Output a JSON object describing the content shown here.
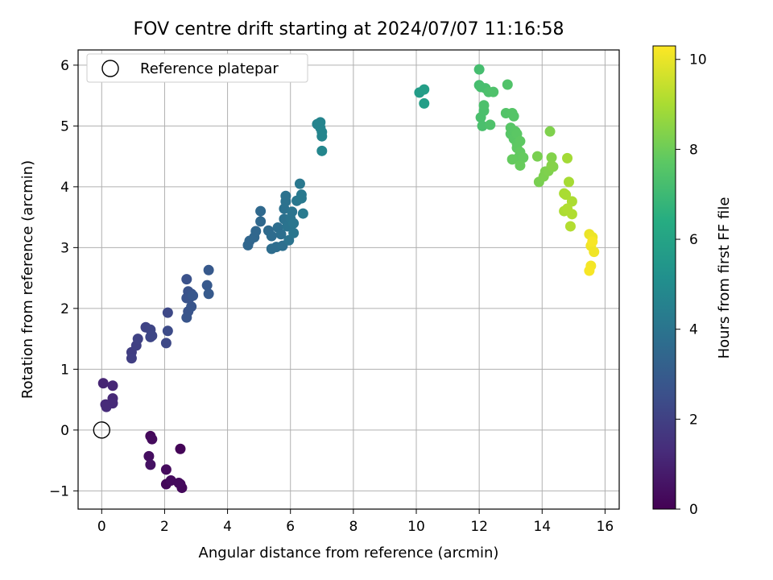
{
  "chart_data": {
    "type": "scatter",
    "title": "FOV centre drift starting at 2024/07/07 11:16:58",
    "xlabel": "Angular distance from reference (arcmin)",
    "ylabel": "Rotation from reference (arcmin)",
    "xlim": [
      -0.75,
      16.45
    ],
    "ylim": [
      -1.3,
      6.25
    ],
    "xticks": [
      0,
      2,
      4,
      6,
      8,
      10,
      12,
      14,
      16
    ],
    "xtick_labels": [
      "0",
      "2",
      "4",
      "6",
      "8",
      "10",
      "12",
      "14",
      "16"
    ],
    "yticks": [
      -1,
      0,
      1,
      2,
      3,
      4,
      5,
      6
    ],
    "ytick_labels": [
      "−1",
      "0",
      "1",
      "2",
      "3",
      "4",
      "5",
      "6"
    ],
    "grid": true,
    "legend": {
      "position": "top-left",
      "entries": [
        {
          "label": "Reference platepar",
          "marker": "open-circle"
        }
      ]
    },
    "reference_point": {
      "x": 0,
      "y": 0
    },
    "colorbar": {
      "label": "Hours from first FF file",
      "colormap": "viridis",
      "range": [
        0,
        10.3
      ],
      "ticks": [
        0,
        2,
        4,
        6,
        8,
        10
      ],
      "tick_labels": [
        "0",
        "2",
        "4",
        "6",
        "8",
        "10"
      ]
    },
    "series": [
      {
        "points": [
          [
            1.55,
            -0.1,
            0.2
          ],
          [
            1.6,
            -0.15,
            0.3
          ],
          [
            1.5,
            -0.43,
            0.4
          ],
          [
            1.55,
            -0.57,
            0.5
          ],
          [
            2.5,
            -0.31,
            0.1
          ],
          [
            2.05,
            -0.65,
            0.3
          ],
          [
            2.05,
            -0.89,
            0.2
          ],
          [
            2.2,
            -0.83,
            0.3
          ],
          [
            2.5,
            -0.89,
            0.2
          ],
          [
            2.55,
            -0.95,
            0.25
          ],
          [
            2.45,
            -0.87,
            0.3
          ],
          [
            0.05,
            0.77,
            1.1
          ],
          [
            0.35,
            0.73,
            1.15
          ],
          [
            0.35,
            0.52,
            1.2
          ],
          [
            0.35,
            0.44,
            1.25
          ],
          [
            0.15,
            0.38,
            1.3
          ],
          [
            0.12,
            0.42,
            1.25
          ],
          [
            0.95,
            1.28,
            1.9
          ],
          [
            0.95,
            1.18,
            1.95
          ],
          [
            1.1,
            1.39,
            2.0
          ],
          [
            1.15,
            1.5,
            2.05
          ],
          [
            1.4,
            1.69,
            2.1
          ],
          [
            1.55,
            1.65,
            2.15
          ],
          [
            1.55,
            1.53,
            2.2
          ],
          [
            1.6,
            1.55,
            2.2
          ],
          [
            2.1,
            1.93,
            2.3
          ],
          [
            2.1,
            1.63,
            2.35
          ],
          [
            2.05,
            1.43,
            2.3
          ],
          [
            2.7,
            2.48,
            2.6
          ],
          [
            2.75,
            2.28,
            2.65
          ],
          [
            2.7,
            2.17,
            2.65
          ],
          [
            2.75,
            1.95,
            2.7
          ],
          [
            2.7,
            1.85,
            2.75
          ],
          [
            2.85,
            2.24,
            2.7
          ],
          [
            2.85,
            2.03,
            2.75
          ],
          [
            2.8,
            2.18,
            2.7
          ],
          [
            2.9,
            2.21,
            2.8
          ],
          [
            3.4,
            2.63,
            2.9
          ],
          [
            3.35,
            2.38,
            2.9
          ],
          [
            3.4,
            2.24,
            2.95
          ],
          [
            4.65,
            3.04,
            3.4
          ],
          [
            4.7,
            3.11,
            3.4
          ],
          [
            4.85,
            3.17,
            3.45
          ],
          [
            4.9,
            3.27,
            3.45
          ],
          [
            5.05,
            3.43,
            3.5
          ],
          [
            5.05,
            3.6,
            3.55
          ],
          [
            5.3,
            3.28,
            3.6
          ],
          [
            5.4,
            3.19,
            3.65
          ],
          [
            5.4,
            2.98,
            3.7
          ],
          [
            5.55,
            3.01,
            3.7
          ],
          [
            5.6,
            3.33,
            3.75
          ],
          [
            5.7,
            3.22,
            3.8
          ],
          [
            5.75,
            3.03,
            3.8
          ],
          [
            5.8,
            3.47,
            3.85
          ],
          [
            5.8,
            3.64,
            3.85
          ],
          [
            5.85,
            3.76,
            3.9
          ],
          [
            5.85,
            3.85,
            3.9
          ],
          [
            5.9,
            3.35,
            3.95
          ],
          [
            5.95,
            3.12,
            3.95
          ],
          [
            6.0,
            3.48,
            4.0
          ],
          [
            6.05,
            3.59,
            4.0
          ],
          [
            6.1,
            3.4,
            4.05
          ],
          [
            6.1,
            3.24,
            4.05
          ],
          [
            6.2,
            3.77,
            4.1
          ],
          [
            6.3,
            4.05,
            4.15
          ],
          [
            6.35,
            3.87,
            4.2
          ],
          [
            6.35,
            3.81,
            4.2
          ],
          [
            6.4,
            3.56,
            4.25
          ],
          [
            6.85,
            5.03,
            4.6
          ],
          [
            6.95,
            5.06,
            4.65
          ],
          [
            6.95,
            4.97,
            4.65
          ],
          [
            7.0,
            4.9,
            4.7
          ],
          [
            7.0,
            4.83,
            4.7
          ],
          [
            7.0,
            4.59,
            4.75
          ],
          [
            10.1,
            5.55,
            5.7
          ],
          [
            10.25,
            5.6,
            5.75
          ],
          [
            10.25,
            5.37,
            5.75
          ],
          [
            12.0,
            5.93,
            7.2
          ],
          [
            12.0,
            5.67,
            7.2
          ],
          [
            12.05,
            5.64,
            7.25
          ],
          [
            12.2,
            5.62,
            7.25
          ],
          [
            12.05,
            5.14,
            7.3
          ],
          [
            12.15,
            5.25,
            7.3
          ],
          [
            12.15,
            5.34,
            7.35
          ],
          [
            12.1,
            5.0,
            7.3
          ],
          [
            12.3,
            5.56,
            7.35
          ],
          [
            12.45,
            5.56,
            7.4
          ],
          [
            12.35,
            5.02,
            7.4
          ],
          [
            12.9,
            5.68,
            7.45
          ],
          [
            12.85,
            5.21,
            7.5
          ],
          [
            13.05,
            5.21,
            7.55
          ],
          [
            13.1,
            5.16,
            7.55
          ],
          [
            13.0,
            4.97,
            7.6
          ],
          [
            13.0,
            4.87,
            7.6
          ],
          [
            13.1,
            4.79,
            7.65
          ],
          [
            13.15,
            4.91,
            7.65
          ],
          [
            13.2,
            4.87,
            7.7
          ],
          [
            13.2,
            4.71,
            7.7
          ],
          [
            13.2,
            4.64,
            7.75
          ],
          [
            13.3,
            4.75,
            7.75
          ],
          [
            13.3,
            4.57,
            7.8
          ],
          [
            13.25,
            4.48,
            7.8
          ],
          [
            13.05,
            4.45,
            7.85
          ],
          [
            13.4,
            4.48,
            7.85
          ],
          [
            13.3,
            4.35,
            7.9
          ],
          [
            13.85,
            4.5,
            8.2
          ],
          [
            13.9,
            4.08,
            8.2
          ],
          [
            14.05,
            4.17,
            8.25
          ],
          [
            14.1,
            4.25,
            8.25
          ],
          [
            14.2,
            4.26,
            8.3
          ],
          [
            14.25,
            4.91,
            8.3
          ],
          [
            14.3,
            4.48,
            8.35
          ],
          [
            14.35,
            4.33,
            8.35
          ],
          [
            14.3,
            4.35,
            8.4
          ],
          [
            14.8,
            4.47,
            8.9
          ],
          [
            14.85,
            4.08,
            8.95
          ],
          [
            14.7,
            3.89,
            9.0
          ],
          [
            14.75,
            3.87,
            9.0
          ],
          [
            14.95,
            3.76,
            9.05
          ],
          [
            14.7,
            3.6,
            9.05
          ],
          [
            14.8,
            3.64,
            9.1
          ],
          [
            14.95,
            3.55,
            9.1
          ],
          [
            14.9,
            3.35,
            9.15
          ],
          [
            15.5,
            3.22,
            10.0
          ],
          [
            15.6,
            3.17,
            10.05
          ],
          [
            15.55,
            3.03,
            10.1
          ],
          [
            15.65,
            2.93,
            10.1
          ],
          [
            15.55,
            2.7,
            10.15
          ],
          [
            15.5,
            2.62,
            10.2
          ],
          [
            15.6,
            3.1,
            10.2
          ]
        ]
      }
    ]
  }
}
